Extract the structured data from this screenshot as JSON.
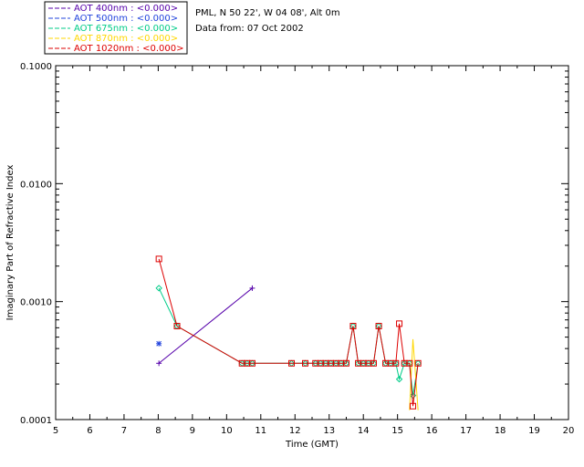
{
  "chart_data": {
    "type": "line",
    "title": "",
    "xlabel": "Time (GMT)",
    "ylabel": "Imaginary Part of Refractive Index",
    "xlim": [
      5,
      20
    ],
    "ylim": [
      0.0001,
      0.1
    ],
    "yscale": "log",
    "xticks": [
      5,
      6,
      7,
      8,
      9,
      10,
      11,
      12,
      13,
      14,
      15,
      16,
      17,
      18,
      19,
      20
    ],
    "yticks": [
      "0.0001",
      "0.0010",
      "0.0100",
      "0.1000"
    ],
    "yticks_values": [
      0.0001,
      0.001,
      0.01,
      0.1
    ],
    "legend_position": "top-left",
    "grid": false,
    "info_lines": [
      "PML, N 50 22', W 04 08', Alt 0m",
      "Data from: 07 Oct 2002"
    ],
    "series": [
      {
        "name": "AOT  400nm : <0.000>",
        "color": "#5500aa",
        "marker": "plus",
        "x": [
          8.02,
          10.75
        ],
        "y": [
          0.0003,
          0.0013
        ]
      },
      {
        "name": "AOT  500nm : <0.000>",
        "color": "#2244dd",
        "marker": "asterisk",
        "x": [
          8.02
        ],
        "y": [
          0.00044
        ]
      },
      {
        "name": "AOT  675nm : <0.000>",
        "color": "#00cc88",
        "marker": "diamond",
        "x": [
          8.02,
          8.55,
          10.45,
          10.6,
          10.75,
          11.9,
          12.3,
          12.6,
          12.75,
          12.9,
          13.05,
          13.2,
          13.35,
          13.5,
          13.7,
          13.85,
          14.0,
          14.15,
          14.3,
          14.45,
          14.65,
          14.8,
          14.95,
          15.05,
          15.2,
          15.35,
          15.45,
          15.6
        ],
        "y": [
          0.0013,
          0.00062,
          0.0003,
          0.0003,
          0.0003,
          0.0003,
          0.0003,
          0.0003,
          0.0003,
          0.0003,
          0.0003,
          0.0003,
          0.0003,
          0.0003,
          0.00062,
          0.0003,
          0.0003,
          0.0003,
          0.0003,
          0.00062,
          0.0003,
          0.0003,
          0.0003,
          0.00022,
          0.0003,
          0.0003,
          0.00016,
          0.0003
        ]
      },
      {
        "name": "AOT  870nm : <0.000>",
        "color": "#ffd700",
        "marker": "none",
        "x": [
          15.35,
          15.45,
          15.6
        ],
        "y": [
          0.00012,
          0.00048,
          0.00012
        ]
      },
      {
        "name": "AOT 1020nm : <0.000>",
        "color": "#dd0000",
        "marker": "square",
        "x": [
          8.02,
          8.55,
          10.45,
          10.6,
          10.75,
          11.9,
          12.3,
          12.6,
          12.75,
          12.9,
          13.05,
          13.2,
          13.35,
          13.5,
          13.7,
          13.85,
          14.0,
          14.15,
          14.3,
          14.45,
          14.65,
          14.8,
          14.95,
          15.05,
          15.2,
          15.35,
          15.45,
          15.6
        ],
        "y": [
          0.0023,
          0.00062,
          0.0003,
          0.0003,
          0.0003,
          0.0003,
          0.0003,
          0.0003,
          0.0003,
          0.0003,
          0.0003,
          0.0003,
          0.0003,
          0.0003,
          0.00062,
          0.0003,
          0.0003,
          0.0003,
          0.0003,
          0.00062,
          0.0003,
          0.0003,
          0.0003,
          0.00065,
          0.0003,
          0.0003,
          0.00013,
          0.0003
        ]
      }
    ]
  }
}
